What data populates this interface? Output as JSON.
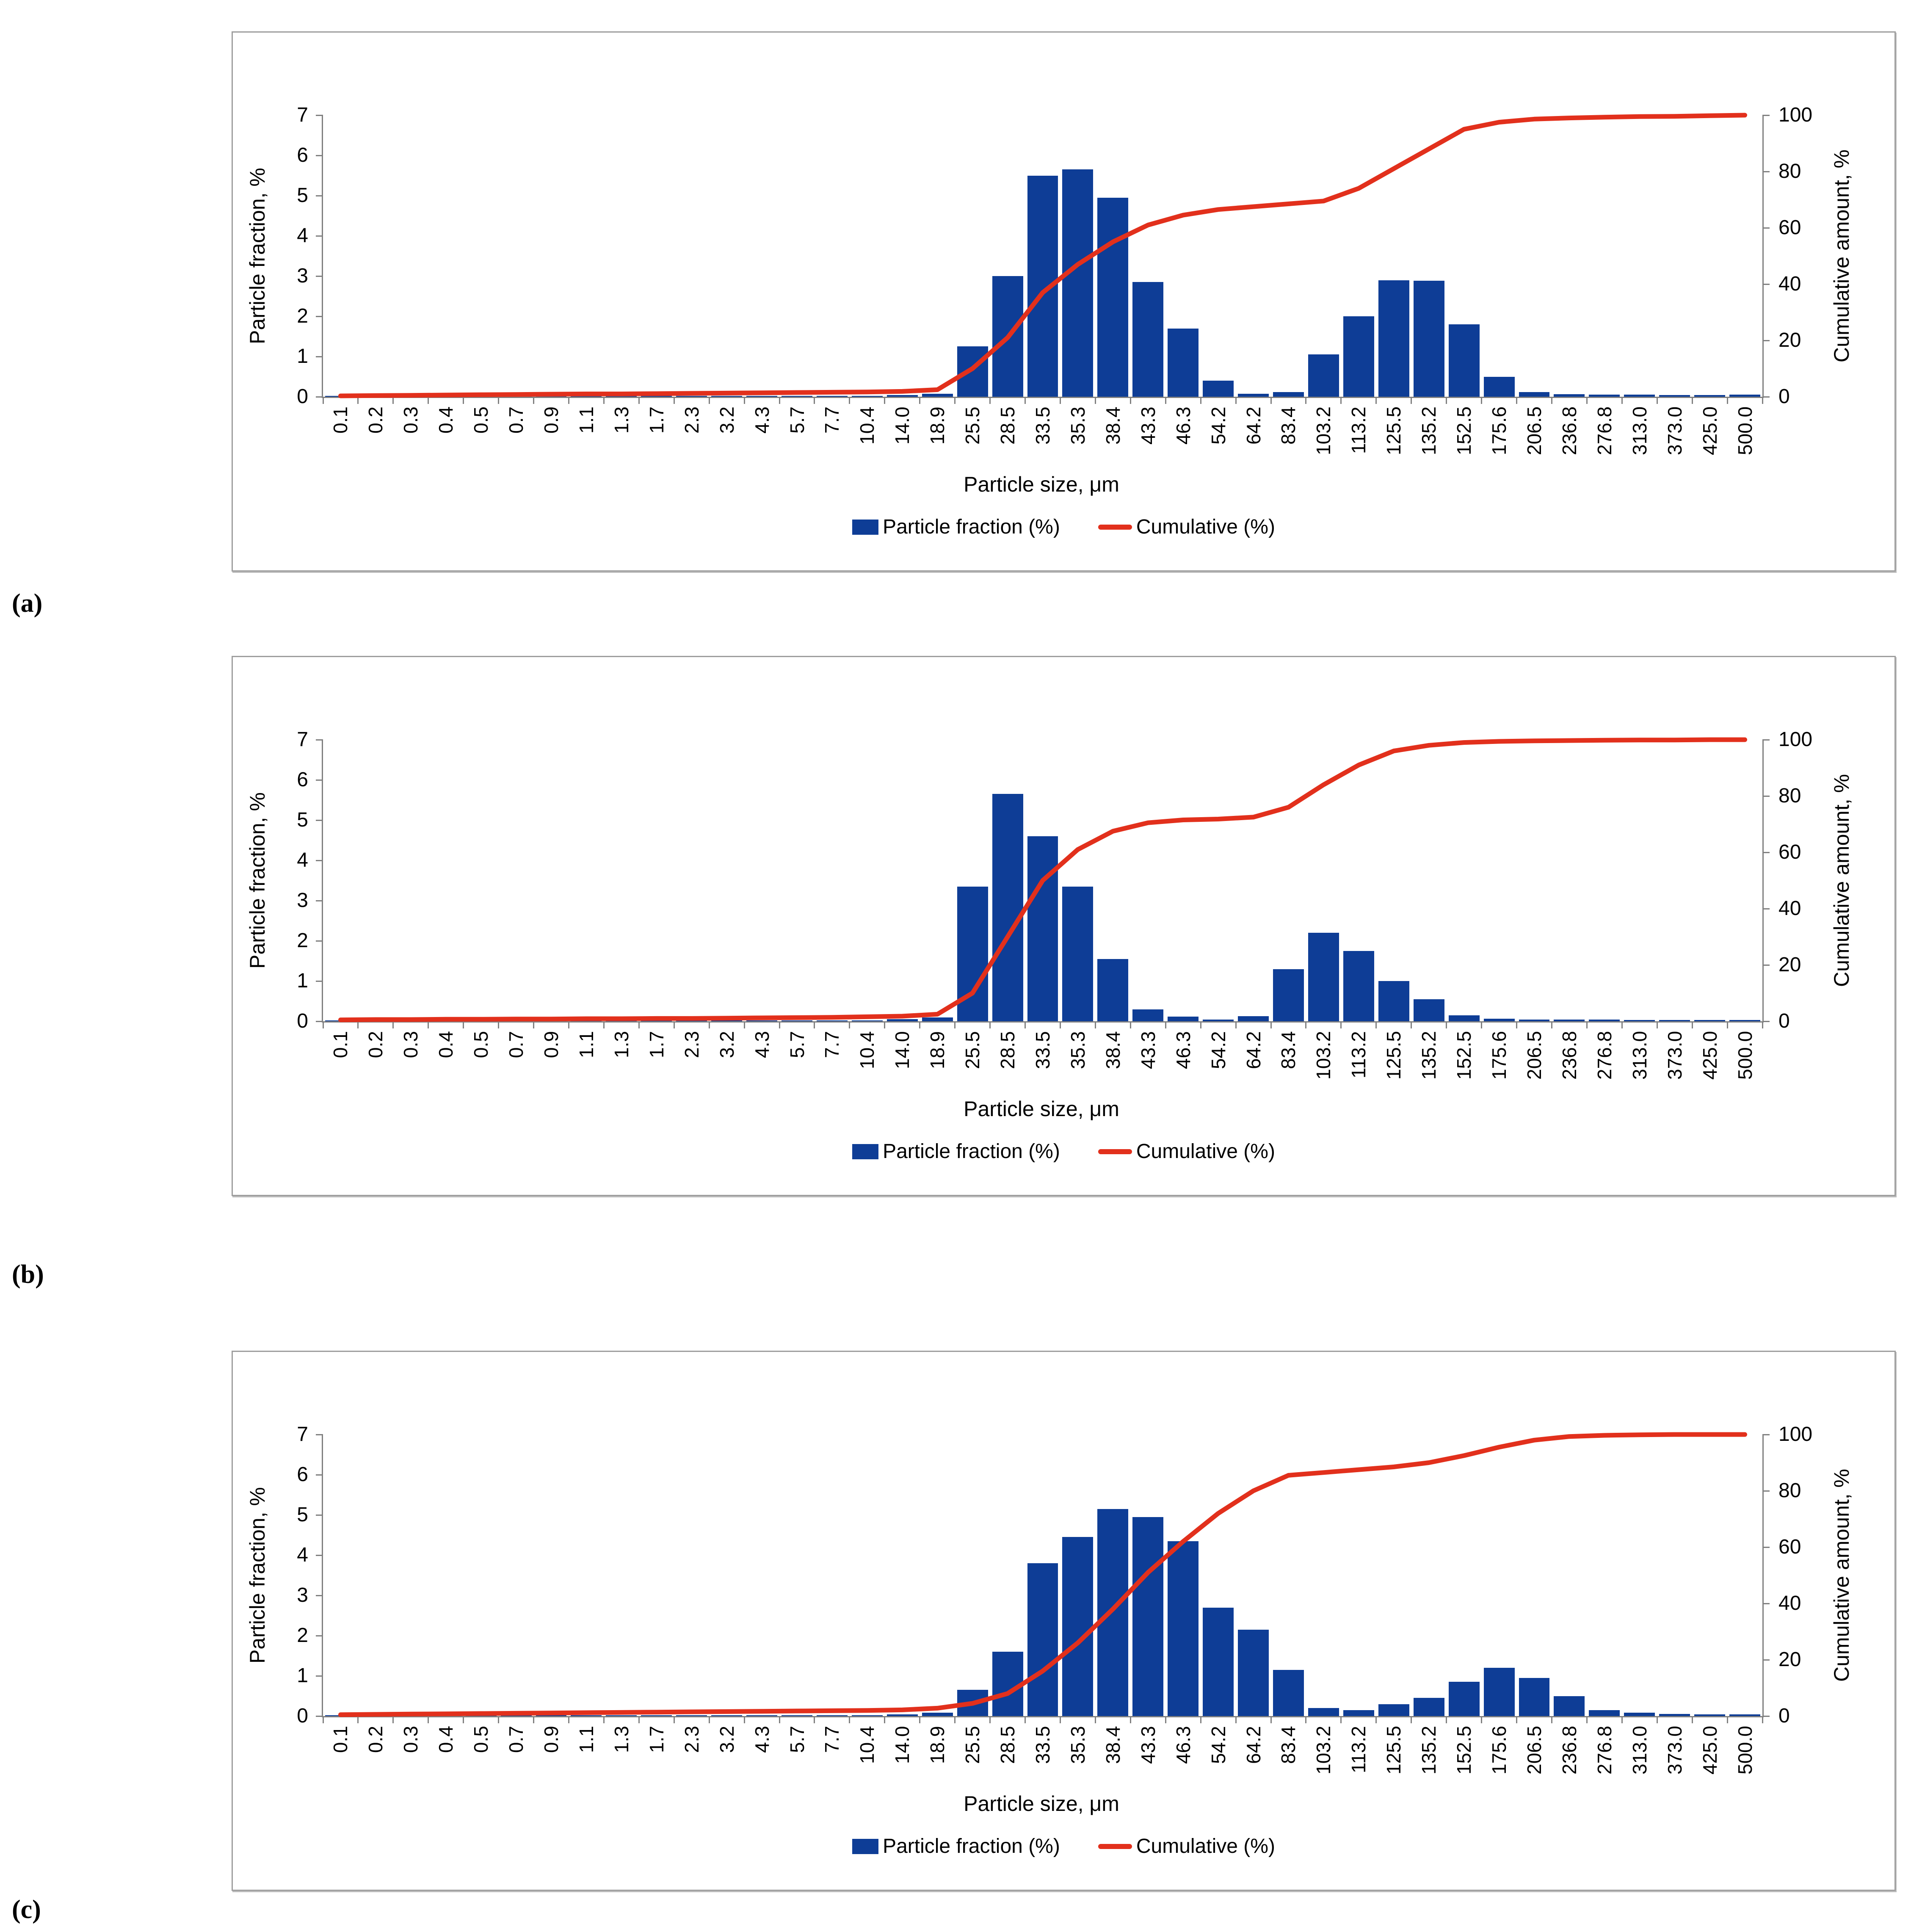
{
  "axes": {
    "ylabel_left": "Particle fraction, %",
    "ylabel_right": "Cumulative amount, %",
    "xlabel": "Particle size, μm",
    "y_ticks_left": [
      0,
      1,
      2,
      3,
      4,
      5,
      6,
      7
    ],
    "y_ticks_right": [
      0,
      20,
      40,
      60,
      80,
      100
    ],
    "ylim_left": [
      0,
      7
    ],
    "ylim_right": [
      0,
      100
    ],
    "grid": false
  },
  "legend": {
    "bar_label": "Particle fraction (%)",
    "line_label": "Cumulative (%)",
    "position": "bottom-center"
  },
  "colors": {
    "bar": "#0e3d96",
    "line": "#e2301c",
    "axis": "#808080",
    "panel_border": "#9e9e9e"
  },
  "chart_data": [
    {
      "type": "bar",
      "subtype": "bar+line-combo",
      "panel_label": "(a)",
      "xlabel": "Particle size, μm",
      "ylabel": "Particle fraction, %",
      "ylabel_right": "Cumulative amount, %",
      "ylim": [
        0,
        7
      ],
      "ylim_right": [
        0,
        100
      ],
      "categories": [
        "0.1",
        "0.2",
        "0.3",
        "0.4",
        "0.5",
        "0.7",
        "0.9",
        "1.1",
        "1.3",
        "1.7",
        "2.3",
        "3.2",
        "4.3",
        "5.7",
        "7.7",
        "10.4",
        "14.0",
        "18.9",
        "25.5",
        "28.5",
        "33.5",
        "35.3",
        "38.4",
        "43.3",
        "46.3",
        "54.2",
        "64.2",
        "83.4",
        "103.2",
        "113.2",
        "125.5",
        "135.2",
        "152.5",
        "175.6",
        "206.5",
        "236.8",
        "276.8",
        "313.0",
        "373.0",
        "425.0",
        "500.0"
      ],
      "series": [
        {
          "name": "Particle fraction (%)",
          "axis": "left",
          "values": [
            0.02,
            0.02,
            0.02,
            0.02,
            0.02,
            0.02,
            0.02,
            0.02,
            0.02,
            0.02,
            0.02,
            0.02,
            0.02,
            0.02,
            0.02,
            0.02,
            0.04,
            0.07,
            1.25,
            3.0,
            5.5,
            5.65,
            4.95,
            2.85,
            1.7,
            0.4,
            0.07,
            0.12,
            1.05,
            2.0,
            2.9,
            2.88,
            1.8,
            0.5,
            0.12,
            0.06,
            0.05,
            0.05,
            0.04,
            0.04,
            0.05
          ]
        },
        {
          "name": "Cumulative (%)",
          "axis": "right",
          "values": [
            0.3,
            0.4,
            0.5,
            0.6,
            0.7,
            0.8,
            0.9,
            1.0,
            1.0,
            1.1,
            1.2,
            1.3,
            1.4,
            1.5,
            1.6,
            1.7,
            1.9,
            2.5,
            10,
            21,
            37,
            47,
            55,
            61,
            64.5,
            66.5,
            67.5,
            68.5,
            69.5,
            74,
            81,
            88,
            95,
            97.5,
            98.6,
            99,
            99.3,
            99.5,
            99.6,
            99.8,
            100
          ]
        }
      ]
    },
    {
      "type": "bar",
      "subtype": "bar+line-combo",
      "panel_label": "(b)",
      "xlabel": "Particle size, μm",
      "ylabel": "Particle fraction, %",
      "ylabel_right": "Cumulative amount, %",
      "ylim": [
        0,
        7
      ],
      "ylim_right": [
        0,
        100
      ],
      "categories": [
        "0.1",
        "0.2",
        "0.3",
        "0.4",
        "0.5",
        "0.7",
        "0.9",
        "1.1",
        "1.3",
        "1.7",
        "2.3",
        "3.2",
        "4.3",
        "5.7",
        "7.7",
        "10.4",
        "14.0",
        "18.9",
        "25.5",
        "28.5",
        "33.5",
        "35.3",
        "38.4",
        "43.3",
        "46.3",
        "54.2",
        "64.2",
        "83.4",
        "103.2",
        "113.2",
        "125.5",
        "135.2",
        "152.5",
        "175.6",
        "206.5",
        "236.8",
        "276.8",
        "313.0",
        "373.0",
        "425.0",
        "500.0"
      ],
      "series": [
        {
          "name": "Particle fraction (%)",
          "axis": "left",
          "values": [
            0.02,
            0.02,
            0.02,
            0.02,
            0.02,
            0.02,
            0.02,
            0.02,
            0.02,
            0.02,
            0.02,
            0.02,
            0.02,
            0.02,
            0.02,
            0.02,
            0.05,
            0.1,
            3.35,
            5.65,
            4.6,
            3.35,
            1.55,
            0.3,
            0.12,
            0.04,
            0.13,
            1.3,
            2.2,
            1.75,
            1.0,
            0.55,
            0.15,
            0.06,
            0.04,
            0.04,
            0.04,
            0.03,
            0.03,
            0.03,
            0.03
          ]
        },
        {
          "name": "Cumulative (%)",
          "axis": "right",
          "values": [
            0.5,
            0.6,
            0.6,
            0.7,
            0.7,
            0.8,
            0.8,
            0.9,
            0.9,
            1.0,
            1.0,
            1.1,
            1.2,
            1.3,
            1.4,
            1.6,
            1.8,
            2.5,
            10,
            30,
            50,
            61,
            67.5,
            70.5,
            71.5,
            71.8,
            72.5,
            76,
            84,
            91,
            96,
            98,
            99,
            99.4,
            99.6,
            99.7,
            99.8,
            99.9,
            99.9,
            100,
            100
          ]
        }
      ]
    },
    {
      "type": "bar",
      "subtype": "bar+line-combo",
      "panel_label": "(c)",
      "xlabel": "Particle size, μm",
      "ylabel": "Particle fraction, %",
      "ylabel_right": "Cumulative amount, %",
      "ylim": [
        0,
        7
      ],
      "ylim_right": [
        0,
        100
      ],
      "categories": [
        "0.1",
        "0.2",
        "0.3",
        "0.4",
        "0.5",
        "0.7",
        "0.9",
        "1.1",
        "1.3",
        "1.7",
        "2.3",
        "3.2",
        "4.3",
        "5.7",
        "7.7",
        "10.4",
        "14.0",
        "18.9",
        "25.5",
        "28.5",
        "33.5",
        "35.3",
        "38.4",
        "43.3",
        "46.3",
        "54.2",
        "64.2",
        "83.4",
        "103.2",
        "113.2",
        "125.5",
        "135.2",
        "152.5",
        "175.6",
        "206.5",
        "236.8",
        "276.8",
        "313.0",
        "373.0",
        "425.0",
        "500.0"
      ],
      "series": [
        {
          "name": "Particle fraction (%)",
          "axis": "left",
          "values": [
            0.02,
            0.02,
            0.02,
            0.02,
            0.02,
            0.02,
            0.02,
            0.02,
            0.02,
            0.02,
            0.02,
            0.02,
            0.02,
            0.02,
            0.02,
            0.02,
            0.04,
            0.08,
            0.65,
            1.6,
            3.8,
            4.45,
            5.15,
            4.95,
            4.35,
            2.7,
            2.15,
            1.15,
            0.2,
            0.15,
            0.3,
            0.45,
            0.85,
            1.2,
            0.95,
            0.5,
            0.15,
            0.08,
            0.05,
            0.04,
            0.04
          ]
        },
        {
          "name": "Cumulative (%)",
          "axis": "right",
          "values": [
            0.5,
            0.6,
            0.7,
            0.8,
            0.9,
            1.0,
            1.1,
            1.2,
            1.3,
            1.4,
            1.5,
            1.6,
            1.7,
            1.8,
            1.9,
            2.0,
            2.2,
            2.8,
            4.5,
            8,
            16,
            26,
            38,
            51,
            62,
            72,
            80,
            85.5,
            86.5,
            87.5,
            88.5,
            90,
            92.5,
            95.5,
            98,
            99.3,
            99.7,
            99.9,
            100,
            100,
            100
          ]
        }
      ]
    }
  ]
}
